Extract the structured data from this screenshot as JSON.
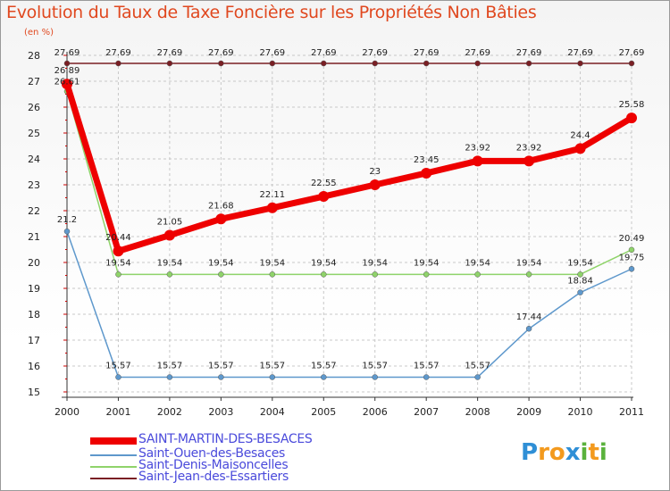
{
  "chart_data": {
    "type": "line",
    "title": "Evolution du Taux de Taxe Foncière sur les Propriétés Non Bâties",
    "ylabel": "(en %)",
    "xlabel": "",
    "ylim": [
      15,
      28
    ],
    "yticks": [
      15,
      16,
      17,
      18,
      19,
      20,
      21,
      22,
      23,
      24,
      25,
      26,
      27,
      28
    ],
    "x": [
      "2000",
      "2001",
      "2002",
      "2003",
      "2004",
      "2005",
      "2006",
      "2007",
      "2008",
      "2009",
      "2010",
      "2011"
    ],
    "series": [
      {
        "name": "Saint-Jean-des-Essartiers",
        "color": "#7a1f24",
        "values": [
          27.69,
          27.69,
          27.69,
          27.69,
          27.69,
          27.69,
          27.69,
          27.69,
          27.69,
          27.69,
          27.69,
          27.69
        ],
        "labels": [
          "27.69",
          "27.69",
          "27.69",
          "27.69",
          "27.69",
          "27.69",
          "27.69",
          "27.69",
          "27.69",
          "27.69",
          "27.69",
          "27.69"
        ]
      },
      {
        "name": "Saint-Ouen-des-Besaces",
        "color": "#5e98cc",
        "values": [
          21.2,
          15.57,
          15.57,
          15.57,
          15.57,
          15.57,
          15.57,
          15.57,
          15.57,
          17.44,
          18.84,
          19.75
        ],
        "labels": [
          "21.2",
          "15.57",
          "15.57",
          "15.57",
          "15.57",
          "15.57",
          "15.57",
          "15.57",
          "15.57",
          "17.44",
          "18.84",
          "19.75"
        ]
      },
      {
        "name": "Saint-Denis-Maisoncelles",
        "color": "#8fd36a",
        "values": [
          26.61,
          19.54,
          19.54,
          19.54,
          19.54,
          19.54,
          19.54,
          19.54,
          19.54,
          19.54,
          19.54,
          20.49
        ],
        "labels": [
          "26.61",
          "19.54",
          "19.54",
          "19.54",
          "19.54",
          "19.54",
          "19.54",
          "19.54",
          "19.54",
          "19.54",
          "19.54",
          "20.49"
        ]
      },
      {
        "name": "SAINT-MARTIN-DES-BESACES",
        "color": "#ee0000",
        "values": [
          26.89,
          20.44,
          21.05,
          21.68,
          22.11,
          22.55,
          23,
          23.45,
          23.92,
          23.92,
          24.4,
          25.58
        ],
        "labels": [
          "26.89",
          "20.44",
          "21.05",
          "21.68",
          "22.11",
          "22.55",
          "23",
          "23.45",
          "23.92",
          "23.92",
          "24.4",
          "25.58"
        ]
      }
    ],
    "legend_order": [
      "SAINT-MARTIN-DES-BESACES",
      "Saint-Ouen-des-Besaces",
      "Saint-Denis-Maisoncelles",
      "Saint-Jean-des-Essartiers"
    ],
    "legend_position": "bottom-left"
  },
  "logo": {
    "text": "Proxiti",
    "letters": [
      {
        "ch": "P",
        "color": "#2f8fd6"
      },
      {
        "ch": "r",
        "color": "#f39a1e"
      },
      {
        "ch": "o",
        "color": "#f39a1e"
      },
      {
        "ch": "x",
        "color": "#2f8fd6"
      },
      {
        "ch": "i",
        "color": "#5ab23c"
      },
      {
        "ch": "t",
        "color": "#f39a1e"
      },
      {
        "ch": "i",
        "color": "#5ab23c"
      }
    ]
  }
}
